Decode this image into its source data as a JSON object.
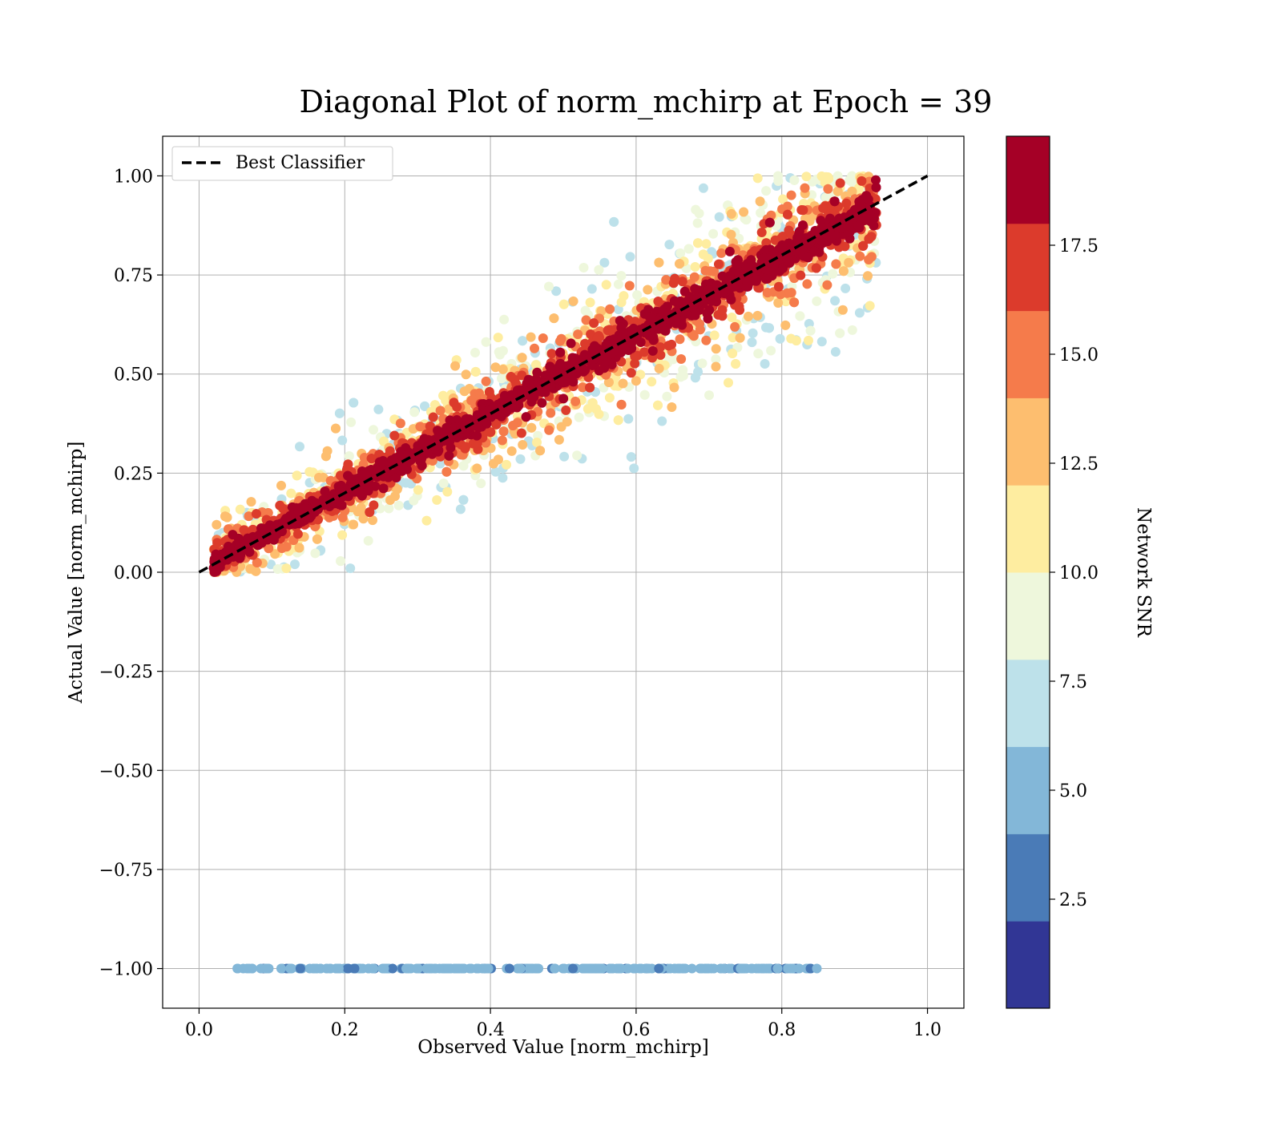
{
  "chart_data": {
    "type": "scatter",
    "title": "Diagonal Plot of norm_mchirp at Epoch = 39",
    "xlabel": "Observed Value [norm_mchirp]",
    "ylabel": "Actual Value [norm_mchirp]",
    "xlim": [
      -0.05,
      1.05
    ],
    "ylim": [
      -1.1,
      1.1
    ],
    "xticks": [
      0.0,
      0.2,
      0.4,
      0.6,
      0.8,
      1.0
    ],
    "xtick_labels": [
      "0.0",
      "0.2",
      "0.4",
      "0.6",
      "0.8",
      "1.0"
    ],
    "yticks": [
      -1.0,
      -0.75,
      -0.5,
      -0.25,
      0.0,
      0.25,
      0.5,
      0.75,
      1.0
    ],
    "ytick_labels": [
      "−1.00",
      "−0.75",
      "−0.50",
      "−0.25",
      "0.00",
      "0.25",
      "0.50",
      "0.75",
      "1.00"
    ],
    "grid": true,
    "legend": {
      "position": "top-left",
      "entries": [
        {
          "label": "Best Classifier",
          "style": "dashed",
          "color": "#000000"
        }
      ]
    },
    "reference_line": {
      "name": "Best Classifier",
      "x": [
        0.0,
        1.0
      ],
      "y": [
        0.0,
        1.0
      ],
      "style": "dashed",
      "color": "#000000"
    },
    "clusters": [
      {
        "description": "diagonal band",
        "x_range": [
          0.02,
          0.93
        ],
        "y_relation": "approximately y = x, spread grows with lower SNR",
        "snr_range": [
          7,
          20
        ]
      },
      {
        "description": "horizontal strip at y = -1",
        "x_range": [
          0.05,
          0.85
        ],
        "y": -1.0,
        "snr_range": [
          2,
          6
        ]
      }
    ],
    "colorbar": {
      "label": "Network SNR",
      "min": 0.0,
      "max": 20.0,
      "ticks": [
        2.5,
        5.0,
        7.5,
        10.0,
        12.5,
        15.0,
        17.5
      ],
      "tick_labels": [
        "2.5",
        "5.0",
        "7.5",
        "10.0",
        "12.5",
        "15.0",
        "17.5"
      ],
      "colors": [
        "#313695",
        "#4a7bb7",
        "#83b7d8",
        "#bde1ea",
        "#eef7dc",
        "#feeda0",
        "#fdbe6f",
        "#f57b4b",
        "#dc3b2c",
        "#a50026"
      ]
    }
  }
}
